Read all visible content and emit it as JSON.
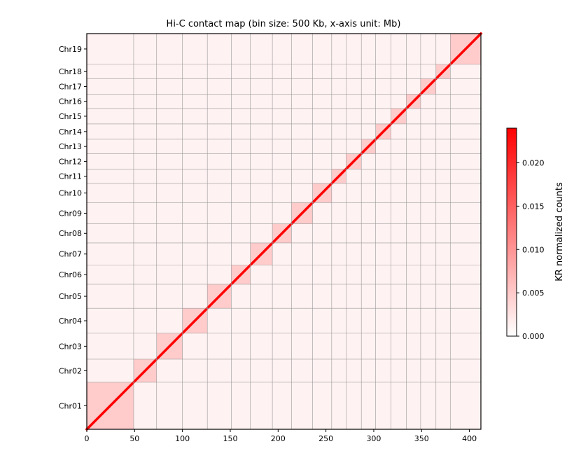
{
  "chart_data": {
    "type": "heatmap",
    "title": "Hi-C contact map (bin size: 500 Kb, x-axis unit: Mb)",
    "xlim": [
      0,
      412
    ],
    "x_ticks": [
      0,
      50,
      100,
      150,
      200,
      250,
      300,
      350,
      400
    ],
    "chromosomes": [
      {
        "name": "Chr01",
        "start": 0,
        "end": 49
      },
      {
        "name": "Chr02",
        "start": 49,
        "end": 73
      },
      {
        "name": "Chr03",
        "start": 73,
        "end": 100
      },
      {
        "name": "Chr04",
        "start": 100,
        "end": 126
      },
      {
        "name": "Chr05",
        "start": 126,
        "end": 151
      },
      {
        "name": "Chr06",
        "start": 151,
        "end": 171
      },
      {
        "name": "Chr07",
        "start": 171,
        "end": 194
      },
      {
        "name": "Chr08",
        "start": 194,
        "end": 214
      },
      {
        "name": "Chr09",
        "start": 214,
        "end": 236
      },
      {
        "name": "Chr10",
        "start": 236,
        "end": 256
      },
      {
        "name": "Chr11",
        "start": 256,
        "end": 271
      },
      {
        "name": "Chr12",
        "start": 271,
        "end": 287
      },
      {
        "name": "Chr13",
        "start": 287,
        "end": 302
      },
      {
        "name": "Chr14",
        "start": 302,
        "end": 318
      },
      {
        "name": "Chr15",
        "start": 318,
        "end": 334
      },
      {
        "name": "Chr16",
        "start": 334,
        "end": 349
      },
      {
        "name": "Chr17",
        "start": 349,
        "end": 365
      },
      {
        "name": "Chr18",
        "start": 365,
        "end": 380
      },
      {
        "name": "Chr19",
        "start": 380,
        "end": 412
      }
    ],
    "colorbar": {
      "label": "KR normalized counts",
      "range": [
        0,
        0.024
      ],
      "ticks": [
        "0.000",
        "0.005",
        "0.010",
        "0.015",
        "0.020"
      ],
      "tick_values": [
        0,
        0.005,
        0.01,
        0.015,
        0.02
      ],
      "color_low": "#ffffff",
      "color_high": "#ff0000"
    },
    "grid": true
  }
}
